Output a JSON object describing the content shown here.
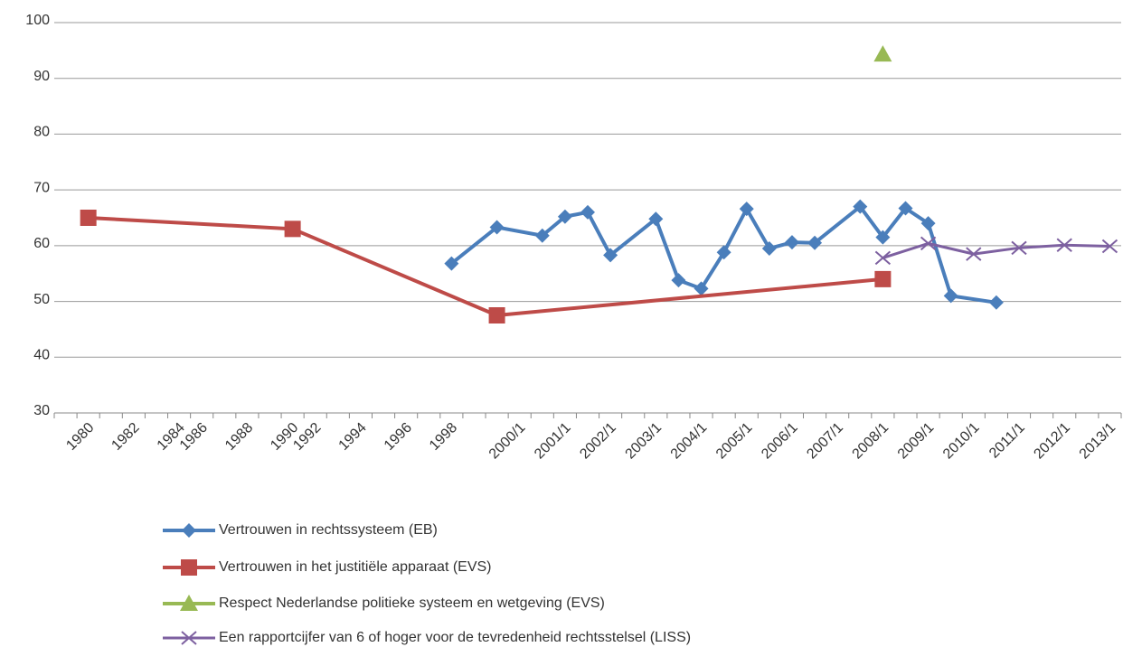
{
  "chart_data": {
    "type": "line",
    "categories": [
      null,
      "1980",
      null,
      "1982",
      null,
      "1984",
      "1986",
      null,
      "1988",
      null,
      "1990",
      "1992",
      null,
      "1994",
      null,
      "1996",
      null,
      "1998",
      null,
      null,
      "2000/1",
      null,
      "2001/1",
      null,
      "2002/1",
      null,
      "2003/1",
      null,
      "2004/1",
      null,
      "2005/1",
      null,
      "2006/1",
      null,
      "2007/1",
      null,
      "2008/1",
      null,
      "2009/1",
      null,
      "2010/1",
      null,
      "2011/1",
      null,
      "2012/1",
      null,
      "2013/1"
    ],
    "series": [
      {
        "name": "Vertrouwen in rechtssysteem (EB)",
        "color": "#4a7ebb",
        "marker": "diamond",
        "values": [
          null,
          null,
          null,
          null,
          null,
          null,
          null,
          null,
          null,
          null,
          null,
          null,
          null,
          null,
          null,
          null,
          null,
          56.8,
          null,
          63.3,
          null,
          61.8,
          65.2,
          66,
          58.3,
          null,
          64.8,
          53.8,
          52.3,
          58.8,
          66.6,
          59.5,
          60.6,
          60.5,
          null,
          67,
          61.5,
          66.7,
          64,
          51,
          null,
          49.8,
          null,
          null,
          null,
          null,
          null
        ]
      },
      {
        "name": "Vertrouwen in het justitiële apparaat (EVS)",
        "color": "#be4b48",
        "marker": "square",
        "values": [
          null,
          65,
          null,
          null,
          null,
          null,
          null,
          null,
          null,
          null,
          63,
          null,
          null,
          null,
          null,
          null,
          null,
          null,
          null,
          47.5,
          null,
          null,
          null,
          null,
          null,
          null,
          null,
          null,
          null,
          null,
          null,
          null,
          null,
          null,
          null,
          null,
          54,
          null,
          null,
          null,
          null,
          null,
          null,
          null,
          null,
          null,
          null
        ]
      },
      {
        "name": "Respect Nederlandse politieke systeem en wetgeving (EVS)",
        "color": "#98b954",
        "marker": "triangle",
        "values": [
          null,
          null,
          null,
          null,
          null,
          null,
          null,
          null,
          null,
          null,
          null,
          null,
          null,
          null,
          null,
          null,
          null,
          null,
          null,
          null,
          null,
          null,
          null,
          null,
          null,
          null,
          null,
          null,
          null,
          null,
          null,
          null,
          null,
          null,
          null,
          null,
          94.3,
          null,
          null,
          null,
          null,
          null,
          null,
          null,
          null,
          null,
          null
        ]
      },
      {
        "name": "Een rapportcijfer van 6 of hoger voor de tevredenheid rechtsstelsel (LISS)",
        "color": "#7d60a0",
        "marker": "x",
        "values": [
          null,
          null,
          null,
          null,
          null,
          null,
          null,
          null,
          null,
          null,
          null,
          null,
          null,
          null,
          null,
          null,
          null,
          null,
          null,
          null,
          null,
          null,
          null,
          null,
          null,
          null,
          null,
          null,
          null,
          null,
          null,
          null,
          null,
          null,
          null,
          null,
          57.8,
          null,
          60.4,
          null,
          58.5,
          null,
          59.6,
          null,
          60.1,
          null,
          59.9
        ]
      }
    ],
    "ylim": [
      30,
      100
    ],
    "yticks": [
      30,
      40,
      50,
      60,
      70,
      80,
      90,
      100
    ],
    "grid": true,
    "span_gaps": true,
    "legend": "bottom"
  }
}
